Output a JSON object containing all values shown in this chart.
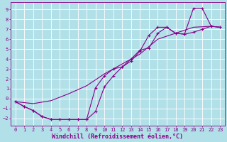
{
  "xlabel": "Windchill (Refroidissement éolien,°C)",
  "ylabel": "",
  "bg_color": "#b2e0e8",
  "line_color": "#880088",
  "grid_color": "#ffffff",
  "xlim": [
    -0.5,
    23.5
  ],
  "ylim": [
    -2.7,
    9.7
  ],
  "xticks": [
    0,
    1,
    2,
    3,
    4,
    5,
    6,
    7,
    8,
    9,
    10,
    11,
    12,
    13,
    14,
    15,
    16,
    17,
    18,
    19,
    20,
    21,
    22,
    23
  ],
  "yticks": [
    -2,
    -1,
    0,
    1,
    2,
    3,
    4,
    5,
    6,
    7,
    8,
    9
  ],
  "curve1_x": [
    0,
    1,
    2,
    3,
    4,
    5,
    6,
    7,
    8,
    9,
    10,
    11,
    12,
    13,
    14,
    15,
    16,
    17,
    18,
    19,
    20,
    21,
    22,
    23
  ],
  "curve1_y": [
    -0.3,
    -0.8,
    -1.2,
    -1.8,
    -2.1,
    -2.1,
    -2.1,
    -2.1,
    -2.1,
    1.1,
    2.3,
    3.0,
    3.2,
    4.0,
    4.9,
    5.1,
    6.6,
    7.2,
    6.6,
    6.5,
    9.1,
    9.1,
    7.3,
    7.2
  ],
  "curve2_x": [
    0,
    1,
    2,
    3,
    4,
    5,
    6,
    7,
    8,
    9,
    10,
    11,
    12,
    13,
    14,
    15,
    16,
    17,
    18,
    19,
    20,
    21,
    22,
    23
  ],
  "curve2_y": [
    -0.3,
    -0.8,
    -1.2,
    -1.8,
    -2.1,
    -2.1,
    -2.1,
    -2.1,
    -2.1,
    -1.3,
    1.2,
    2.3,
    3.2,
    3.8,
    4.8,
    6.4,
    7.2,
    7.2,
    6.6,
    6.5,
    6.7,
    7.0,
    7.3,
    7.2
  ],
  "curve3_x": [
    0,
    2,
    4,
    6,
    8,
    10,
    12,
    14,
    16,
    18,
    20,
    22,
    23
  ],
  "curve3_y": [
    -0.3,
    -0.5,
    -0.2,
    0.5,
    1.3,
    2.5,
    3.5,
    4.5,
    6.0,
    6.6,
    7.2,
    7.3,
    7.2
  ],
  "font_family": "monospace",
  "tick_fontsize": 5.0,
  "xlabel_fontsize": 6.0
}
